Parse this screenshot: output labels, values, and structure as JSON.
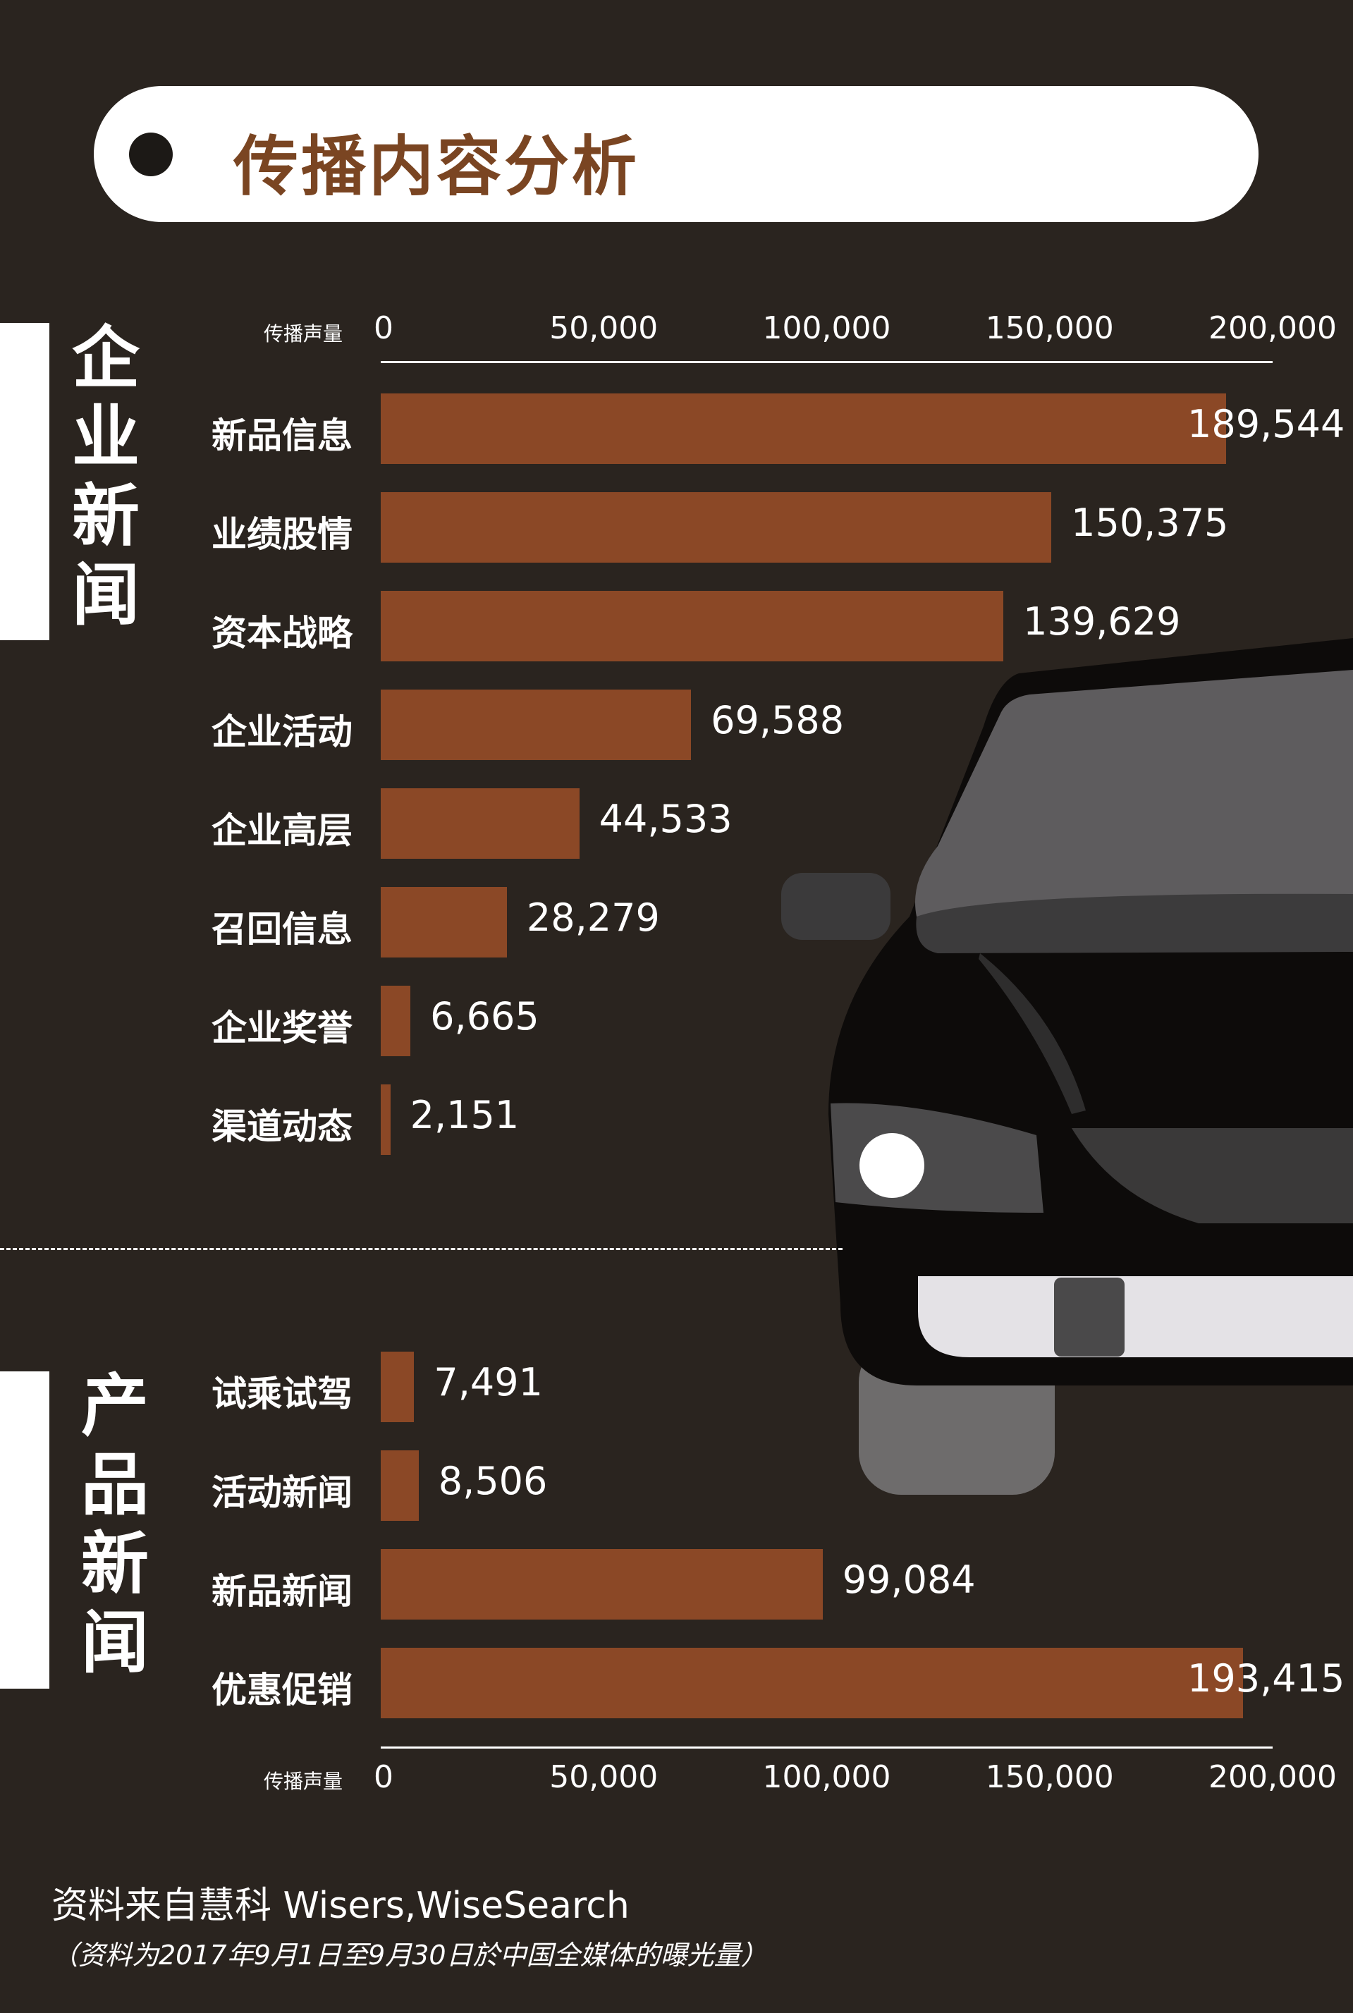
{
  "header": {
    "title": "传播内容分析"
  },
  "axis": {
    "caption": "传播声量",
    "ticks": [
      "0",
      "50,000",
      "100,000",
      "150,000",
      "200,000"
    ]
  },
  "sections": [
    {
      "title": "企\n业\n新\n闻"
    },
    {
      "title": "产\n品\n新\n闻"
    }
  ],
  "footer": {
    "source": "资料来自慧科 Wisers,WiseSearch",
    "note": "（资料为2017年9月1日至9月30日於中国全媒体的曝光量）"
  },
  "colors": {
    "bar": "#8b4826",
    "background": "#2a241f",
    "title_text": "#7a4522"
  },
  "chart_data": [
    {
      "type": "bar",
      "orientation": "horizontal",
      "group": "企业新闻",
      "xlabel": "传播声量",
      "xlim": [
        0,
        200000
      ],
      "categories": [
        "新品信息",
        "业绩股情",
        "资本战略",
        "企业活动",
        "企业高层",
        "召回信息",
        "企业奖誉",
        "渠道动态"
      ],
      "values": [
        189544,
        150375,
        139629,
        69588,
        44533,
        28279,
        6665,
        2151
      ],
      "value_labels": [
        "189,544",
        "150,375",
        "139,629",
        "69,588",
        "44,533",
        "28,279",
        "6,665",
        "2,151"
      ]
    },
    {
      "type": "bar",
      "orientation": "horizontal",
      "group": "产品新闻",
      "xlabel": "传播声量",
      "xlim": [
        0,
        200000
      ],
      "categories": [
        "试乘试驾",
        "活动新闻",
        "新品新闻",
        "优惠促销"
      ],
      "values": [
        7491,
        8506,
        99084,
        193415
      ],
      "value_labels": [
        "7,491",
        "8,506",
        "99,084",
        "193,415"
      ]
    }
  ]
}
